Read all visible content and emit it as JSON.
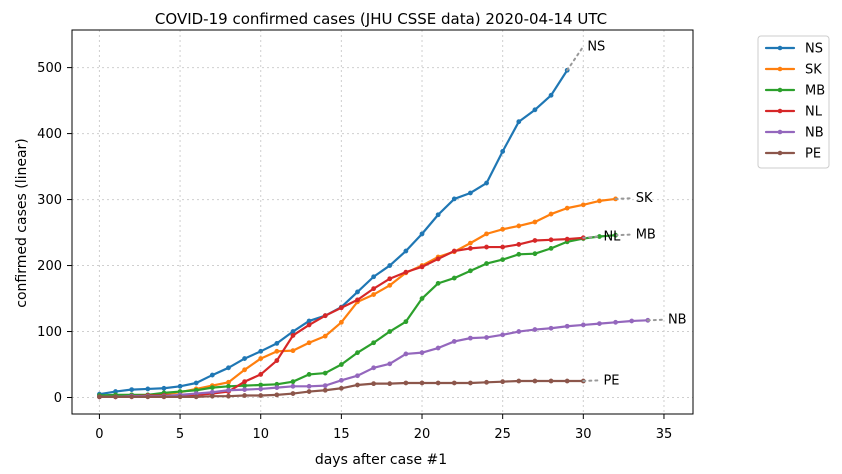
{
  "chart_data": {
    "type": "line",
    "title": "COVID-19 confirmed cases (JHU CSSE data) 2020-04-14 UTC",
    "xlabel": "days after case #1",
    "ylabel": "confirmed cases (linear)",
    "xlim": [
      -1.7,
      36.8
    ],
    "ylim": [
      -25,
      557
    ],
    "x_ticks": [
      0,
      5,
      10,
      15,
      20,
      25,
      30,
      35
    ],
    "y_ticks": [
      0,
      100,
      200,
      300,
      400,
      500
    ],
    "grid": true,
    "legend_position": "right",
    "series": [
      {
        "name": "NS",
        "color": "#1f77b4",
        "x": [
          0,
          1,
          2,
          3,
          4,
          5,
          6,
          7,
          8,
          9,
          10,
          11,
          12,
          13,
          14,
          15,
          16,
          17,
          18,
          19,
          20,
          21,
          22,
          23,
          24,
          25,
          26,
          27,
          28,
          29
        ],
        "values": [
          5,
          9,
          12,
          13,
          14,
          17,
          22,
          34,
          45,
          59,
          70,
          82,
          100,
          116,
          124,
          137,
          160,
          183,
          200,
          222,
          248,
          277,
          301,
          310,
          325,
          373,
          418,
          436,
          458,
          496
        ],
        "projection": [
          [
            29,
            496
          ],
          [
            30,
            532
          ]
        ],
        "end_label": "NS"
      },
      {
        "name": "SK",
        "color": "#ff7f0e",
        "x": [
          0,
          1,
          2,
          3,
          4,
          5,
          6,
          7,
          8,
          9,
          10,
          11,
          12,
          13,
          14,
          15,
          16,
          17,
          18,
          19,
          20,
          21,
          22,
          23,
          24,
          25,
          26,
          27,
          28,
          29,
          30,
          31,
          32
        ],
        "values": [
          2,
          2,
          2,
          3,
          5,
          8,
          13,
          18,
          23,
          42,
          59,
          70,
          71,
          83,
          93,
          114,
          145,
          156,
          170,
          189,
          200,
          213,
          221,
          234,
          248,
          255,
          260,
          266,
          278,
          287,
          292,
          298,
          301
        ],
        "projection": [
          [
            32,
            301
          ],
          [
            33,
            302
          ]
        ],
        "end_label": "SK"
      },
      {
        "name": "MB",
        "color": "#2ca02c",
        "x": [
          0,
          1,
          2,
          3,
          4,
          5,
          6,
          7,
          8,
          9,
          10,
          11,
          12,
          13,
          14,
          15,
          16,
          17,
          18,
          19,
          20,
          21,
          22,
          23,
          24,
          25,
          26,
          27,
          28,
          29,
          30,
          31,
          32
        ],
        "values": [
          3,
          4,
          4,
          4,
          7,
          9,
          11,
          15,
          17,
          18,
          19,
          20,
          24,
          35,
          37,
          50,
          68,
          83,
          100,
          115,
          150,
          173,
          181,
          192,
          203,
          209,
          217,
          218,
          226,
          236,
          241,
          244,
          246
        ],
        "projection": [
          [
            32,
            246
          ],
          [
            33,
            247
          ]
        ],
        "end_label": "MB"
      },
      {
        "name": "NL",
        "color": "#d62728",
        "x": [
          0,
          1,
          2,
          3,
          4,
          5,
          6,
          7,
          8,
          9,
          10,
          11,
          12,
          13,
          14,
          15,
          16,
          17,
          18,
          19,
          20,
          21,
          22,
          23,
          24,
          25,
          26,
          27,
          28,
          29,
          30
        ],
        "values": [
          1,
          1,
          2,
          3,
          3,
          3,
          4,
          6,
          9,
          24,
          35,
          56,
          94,
          110,
          124,
          136,
          148,
          165,
          180,
          190,
          198,
          210,
          222,
          226,
          228,
          228,
          232,
          238,
          239,
          240,
          242
        ],
        "projection": [
          [
            30,
            242
          ],
          [
            31,
            244
          ]
        ],
        "end_label": "NL"
      },
      {
        "name": "NB",
        "color": "#9467bd",
        "x": [
          0,
          1,
          2,
          3,
          4,
          5,
          6,
          7,
          8,
          9,
          10,
          11,
          12,
          13,
          14,
          15,
          16,
          17,
          18,
          19,
          20,
          21,
          22,
          23,
          24,
          25,
          26,
          27,
          28,
          29,
          30,
          31,
          32,
          33,
          34
        ],
        "values": [
          1,
          1,
          2,
          2,
          2,
          4,
          6,
          8,
          11,
          12,
          13,
          15,
          17,
          17,
          18,
          26,
          33,
          45,
          51,
          66,
          68,
          75,
          85,
          90,
          91,
          95,
          100,
          103,
          105,
          108,
          110,
          112,
          114,
          116,
          117
        ],
        "projection": [
          [
            34,
            117
          ],
          [
            35,
            118
          ]
        ],
        "end_label": "NB"
      },
      {
        "name": "PE",
        "color": "#8c564b",
        "x": [
          0,
          1,
          2,
          3,
          4,
          5,
          6,
          7,
          8,
          9,
          10,
          11,
          12,
          13,
          14,
          15,
          16,
          17,
          18,
          19,
          20,
          21,
          22,
          23,
          24,
          25,
          26,
          27,
          28,
          29,
          30
        ],
        "values": [
          1,
          1,
          1,
          1,
          1,
          1,
          1,
          2,
          2,
          3,
          3,
          4,
          6,
          9,
          11,
          14,
          19,
          21,
          21,
          22,
          22,
          22,
          22,
          22,
          23,
          24,
          25,
          25,
          25,
          25,
          25
        ],
        "projection": [
          [
            30,
            25
          ],
          [
            31,
            26
          ]
        ],
        "end_label": "PE"
      }
    ]
  }
}
